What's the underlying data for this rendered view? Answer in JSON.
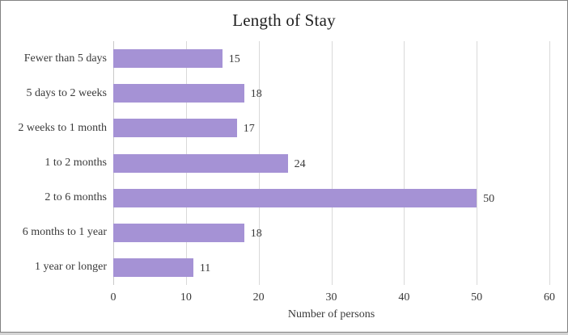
{
  "window": {
    "background": "#ffffff",
    "border_color": "#828282"
  },
  "chart_data": {
    "type": "bar",
    "orientation": "horizontal",
    "title": "Length of Stay",
    "xlabel": "Number of persons",
    "ylabel": "",
    "categories": [
      "Fewer than 5 days",
      "5 days to 2 weeks",
      "2 weeks to 1 month",
      "1 to 2 months",
      "2 to 6 months",
      "6 months to 1 year",
      "1 year or longer"
    ],
    "values": [
      15,
      18,
      17,
      24,
      50,
      18,
      11
    ],
    "data_labels": [
      "15",
      "18",
      "17",
      "24",
      "50",
      "18",
      "11"
    ],
    "xlim": [
      0,
      60
    ],
    "xticks": [
      0,
      10,
      20,
      30,
      40,
      50,
      60
    ],
    "grid": true,
    "legend": false,
    "bar_color": "#a592d5",
    "gridline_color": "#d9d9d9",
    "text_color": "#3a3a3a"
  }
}
